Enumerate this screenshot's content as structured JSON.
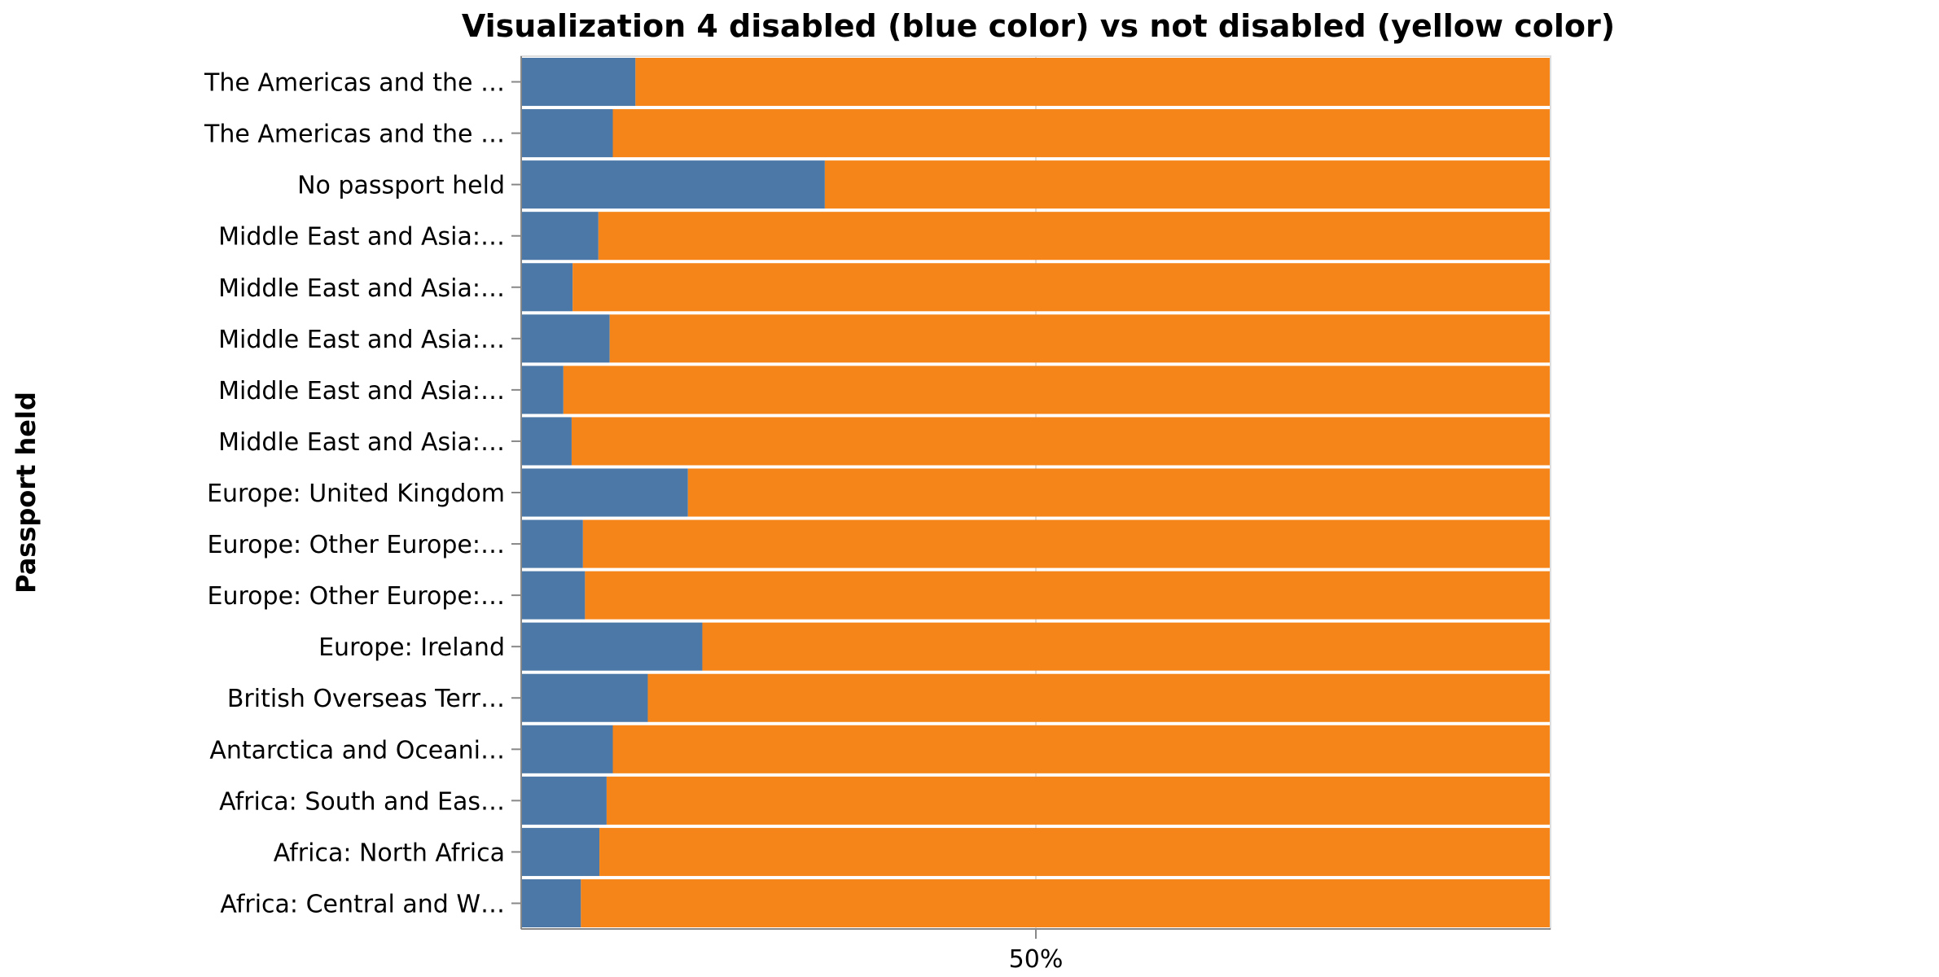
{
  "chart_data": {
    "type": "bar",
    "orientation": "horizontal",
    "stacked": "normalize",
    "title": "Visualization 4 disabled (blue color) vs not disabled (yellow color)",
    "ylabel": "Passport held",
    "xlabel": "",
    "x_ticks": [
      "50%"
    ],
    "xlim": [
      0,
      1
    ],
    "grid": true,
    "legend": "none",
    "categories": [
      "The Americas and the …",
      "The Americas and the …",
      "No passport held",
      "Middle East and Asia:…",
      "Middle East and Asia:…",
      "Middle East and Asia:…",
      "Middle East and Asia:…",
      "Middle East and Asia:…",
      "Europe: United Kingdom",
      "Europe: Other Europe:…",
      "Europe: Other Europe:…",
      "Europe: Ireland",
      "British Overseas Terr…",
      "Antarctica and Oceani…",
      "Africa: South and Eas…",
      "Africa: North Africa",
      "Africa: Central and W…"
    ],
    "series": [
      {
        "color": "#4c78a8",
        "values": [
          0.111,
          0.089,
          0.295,
          0.075,
          0.05,
          0.086,
          0.041,
          0.049,
          0.162,
          0.06,
          0.062,
          0.176,
          0.123,
          0.089,
          0.083,
          0.076,
          0.058
        ]
      },
      {
        "color": "#f58518",
        "values": [
          0.889,
          0.911,
          0.705,
          0.925,
          0.95,
          0.914,
          0.959,
          0.951,
          0.838,
          0.94,
          0.938,
          0.824,
          0.877,
          0.911,
          0.917,
          0.924,
          0.942
        ]
      }
    ]
  }
}
